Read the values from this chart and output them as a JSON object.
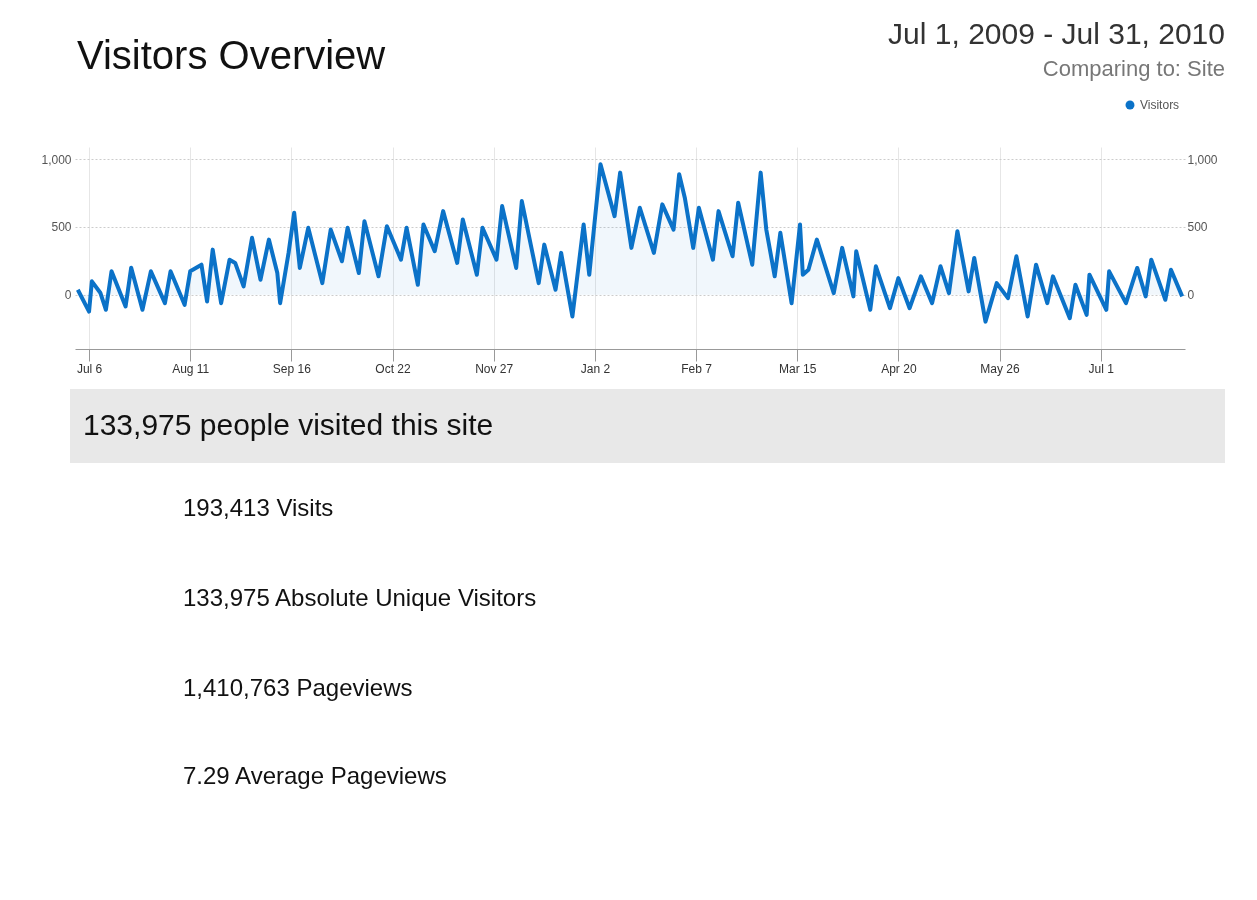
{
  "chart_data": {
    "type": "area",
    "title": "Visitors Overview",
    "annotations": [
      "Jul 1, 2009 - Jul 31, 2010",
      "Comparing to: Site",
      "133,975 people visited this site",
      "193,413 Visits",
      "133,975 Absolute Unique Visitors",
      "1,410,763 Pageviews",
      "7.29 Average Pageviews"
    ],
    "xlim": [
      "2009-07-01",
      "2010-07-31"
    ],
    "xticks": [
      {
        "value": "2009-07-06",
        "label": "Jul 6"
      },
      {
        "value": "2009-08-11",
        "label": "Aug 11"
      },
      {
        "value": "2009-09-16",
        "label": "Sep 16"
      },
      {
        "value": "2009-10-22",
        "label": "Oct 22"
      },
      {
        "value": "2009-11-27",
        "label": "Nov 27"
      },
      {
        "value": "2010-01-02",
        "label": "Jan 2"
      },
      {
        "value": "2010-02-07",
        "label": "Feb 7"
      },
      {
        "value": "2010-03-15",
        "label": "Mar 15"
      },
      {
        "value": "2010-04-20",
        "label": "Apr 20"
      },
      {
        "value": "2010-05-26",
        "label": "May 26"
      },
      {
        "value": "2010-07-01",
        "label": "Jul 1"
      }
    ],
    "ylim": [
      -400,
      1090
    ],
    "yticks": [
      {
        "value": 1000,
        "label": "1,000"
      },
      500,
      0
    ],
    "y2lim": [
      -400,
      1090
    ],
    "y2ticks": [
      {
        "value": 1000,
        "label": "1,000"
      },
      500,
      0
    ],
    "grid": true,
    "legend": "top right",
    "series": [
      {
        "name": "Visitors",
        "color": "#0b72c8",
        "x": [
          "2009-07-02",
          "2009-07-06",
          "2009-07-07",
          "2009-07-10",
          "2009-07-12",
          "2009-07-14",
          "2009-07-19",
          "2009-07-21",
          "2009-07-25",
          "2009-07-28",
          "2009-08-02",
          "2009-08-04",
          "2009-08-09",
          "2009-08-11",
          "2009-08-15",
          "2009-08-17",
          "2009-08-19",
          "2009-08-22",
          "2009-08-25",
          "2009-08-27",
          "2009-08-30",
          "2009-09-02",
          "2009-09-05",
          "2009-09-08",
          "2009-09-11",
          "2009-09-12",
          "2009-09-15",
          "2009-09-17",
          "2009-09-19",
          "2009-09-22",
          "2009-09-27",
          "2009-09-30",
          "2009-10-04",
          "2009-10-06",
          "2009-10-10",
          "2009-10-12",
          "2009-10-17",
          "2009-10-20",
          "2009-10-25",
          "2009-10-27",
          "2009-10-31",
          "2009-11-02",
          "2009-11-06",
          "2009-11-09",
          "2009-11-14",
          "2009-11-16",
          "2009-11-21",
          "2009-11-23",
          "2009-11-28",
          "2009-11-30",
          "2009-12-05",
          "2009-12-07",
          "2009-12-13",
          "2009-12-15",
          "2009-12-19",
          "2009-12-21",
          "2009-12-25",
          "2009-12-29",
          "2009-12-31",
          "2010-01-04",
          "2010-01-09",
          "2010-01-11",
          "2010-01-15",
          "2010-01-18",
          "2010-01-23",
          "2010-01-26",
          "2010-01-30",
          "2010-02-01",
          "2010-02-03",
          "2010-02-06",
          "2010-02-08",
          "2010-02-13",
          "2010-02-15",
          "2010-02-20",
          "2010-02-22",
          "2010-02-27",
          "2010-03-02",
          "2010-03-04",
          "2010-03-07",
          "2010-03-09",
          "2010-03-13",
          "2010-03-16",
          "2010-03-17",
          "2010-03-19",
          "2010-03-22",
          "2010-03-28",
          "2010-03-31",
          "2010-04-04",
          "2010-04-05",
          "2010-04-10",
          "2010-04-12",
          "2010-04-17",
          "2010-04-20",
          "2010-04-24",
          "2010-04-28",
          "2010-05-02",
          "2010-05-05",
          "2010-05-08",
          "2010-05-11",
          "2010-05-15",
          "2010-05-17",
          "2010-05-21",
          "2010-05-25",
          "2010-05-29",
          "2010-06-01",
          "2010-06-05",
          "2010-06-08",
          "2010-06-12",
          "2010-06-14",
          "2010-06-20",
          "2010-06-22",
          "2010-06-26",
          "2010-06-27",
          "2010-07-03",
          "2010-07-04",
          "2010-07-10",
          "2010-07-14",
          "2010-07-17",
          "2010-07-19",
          "2010-07-24",
          "2010-07-26",
          "2010-07-30"
        ],
        "values": [
          37,
          -124,
          99,
          15,
          -111,
          173,
          -86,
          200,
          -111,
          173,
          -62,
          173,
          -74,
          173,
          222,
          -49,
          333,
          -62,
          259,
          235,
          62,
          420,
          111,
          407,
          160,
          -62,
          309,
          605,
          198,
          494,
          86,
          481,
          247,
          494,
          160,
          543,
          136,
          506,
          259,
          494,
          74,
          519,
          321,
          617,
          235,
          556,
          148,
          494,
          259,
          654,
          198,
          691,
          86,
          370,
          37,
          309,
          -160,
          519,
          148,
          963,
          580,
          901,
          346,
          642,
          309,
          667,
          481,
          889,
          716,
          346,
          642,
          259,
          617,
          284,
          679,
          222,
          901,
          481,
          136,
          457,
          -62,
          519,
          148,
          185,
          407,
          12,
          346,
          -12,
          321,
          -111,
          210,
          -99,
          123,
          -99,
          136,
          -62,
          210,
          12,
          469,
          25,
          272,
          -198,
          86,
          -25,
          284,
          -160,
          222,
          -62,
          136,
          -173,
          74,
          -148,
          148,
          -111,
          173,
          -62,
          198,
          -12,
          259,
          -37,
          185,
          -12
        ]
      }
    ]
  }
}
